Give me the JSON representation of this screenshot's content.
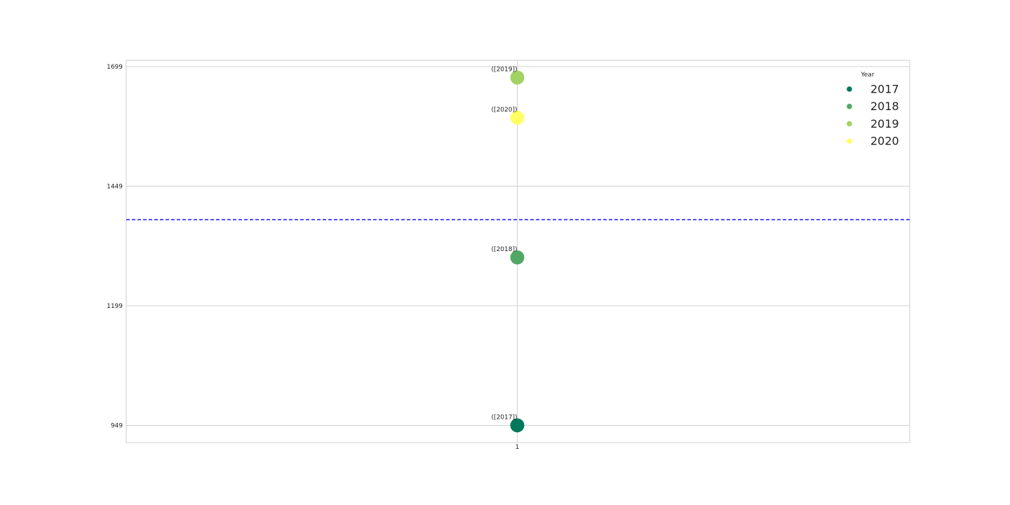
{
  "chart_data": {
    "type": "scatter",
    "x_ticks": [
      "1"
    ],
    "y_ticks": [
      949,
      1199,
      1449,
      1699
    ],
    "ylim": [
      913,
      1712
    ],
    "grid": true,
    "legend": {
      "title": "Year",
      "placement": "top-right",
      "entries": [
        "2017",
        "2018",
        "2019",
        "2020"
      ]
    },
    "reference_line": {
      "y": 1379,
      "color": "#0000ff",
      "style": "dashed"
    },
    "series": [
      {
        "name": "2017",
        "x": 1,
        "y": 949,
        "label": "([2017])",
        "color": "#00785a"
      },
      {
        "name": "2018",
        "x": 1,
        "y": 1300,
        "label": "([2018])",
        "color": "#50a864"
      },
      {
        "name": "2019",
        "x": 1,
        "y": 1676,
        "label": "([2019])",
        "color": "#a2d264"
      },
      {
        "name": "2020",
        "x": 1,
        "y": 1592,
        "label": "([2020])",
        "color": "#ffff66"
      }
    ]
  }
}
